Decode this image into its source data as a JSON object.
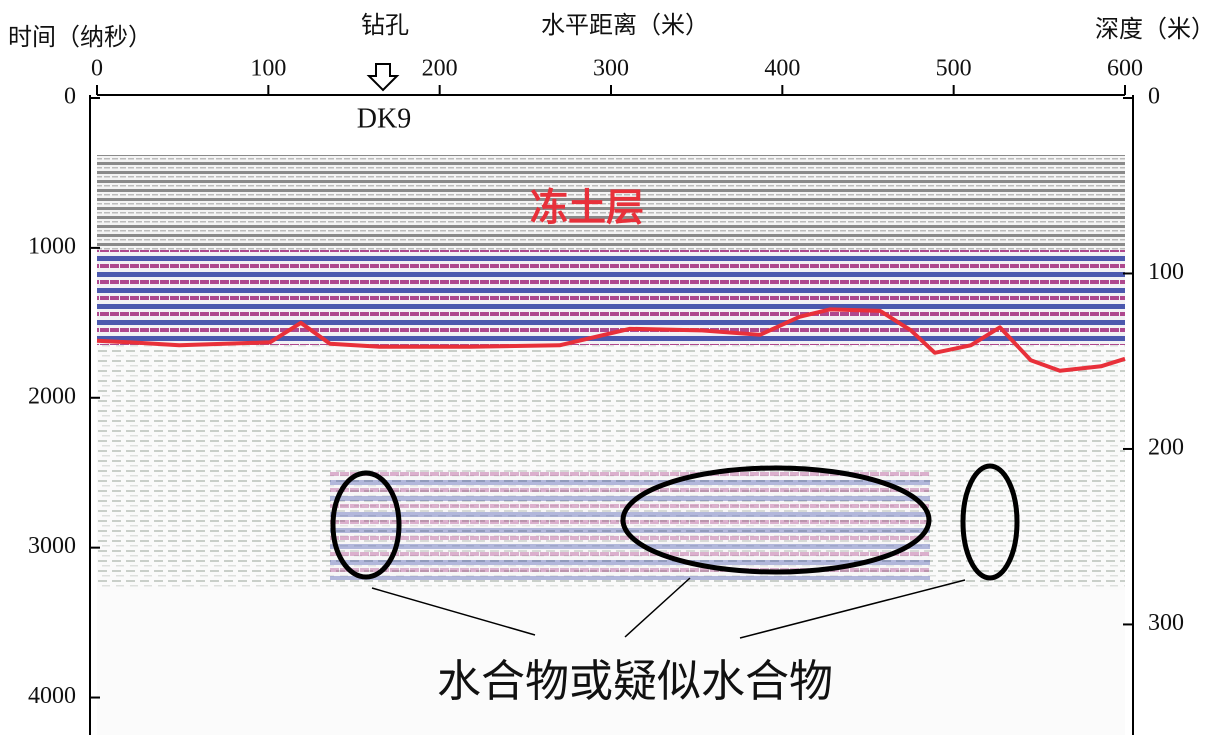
{
  "chart_data": {
    "type": "line",
    "x_axis_label": "水平距离（米）",
    "y_axis_label": "时间（纳秒）",
    "y2_axis_label": "深度（米）",
    "xlim": [
      0,
      600
    ],
    "xticks": [
      0,
      100,
      200,
      300,
      400,
      500,
      600
    ],
    "ylim": [
      0,
      4250
    ],
    "yticks": [
      0,
      1000,
      2000,
      3000,
      4000
    ],
    "y2lim": [
      0,
      363
    ],
    "y2ticks": [
      0,
      100,
      200,
      300
    ],
    "annotations": {
      "borehole": "钻孔",
      "borehole_id": "DK9",
      "layer": "冻土层",
      "hydrate": "水合物或疑似水合物"
    },
    "series": [
      {
        "color": "#e8303a",
        "x": [
          0,
          19,
          48,
          101,
          119,
          136,
          165,
          218,
          270,
          311,
          352,
          387,
          410,
          428,
          457,
          475,
          489,
          510,
          527,
          545,
          562,
          586,
          600
        ],
        "values": [
          1620,
          1630,
          1650,
          1630,
          1500,
          1640,
          1660,
          1660,
          1650,
          1540,
          1550,
          1580,
          1460,
          1410,
          1420,
          1550,
          1700,
          1650,
          1530,
          1750,
          1820,
          1790,
          1740
        ]
      }
    ]
  }
}
